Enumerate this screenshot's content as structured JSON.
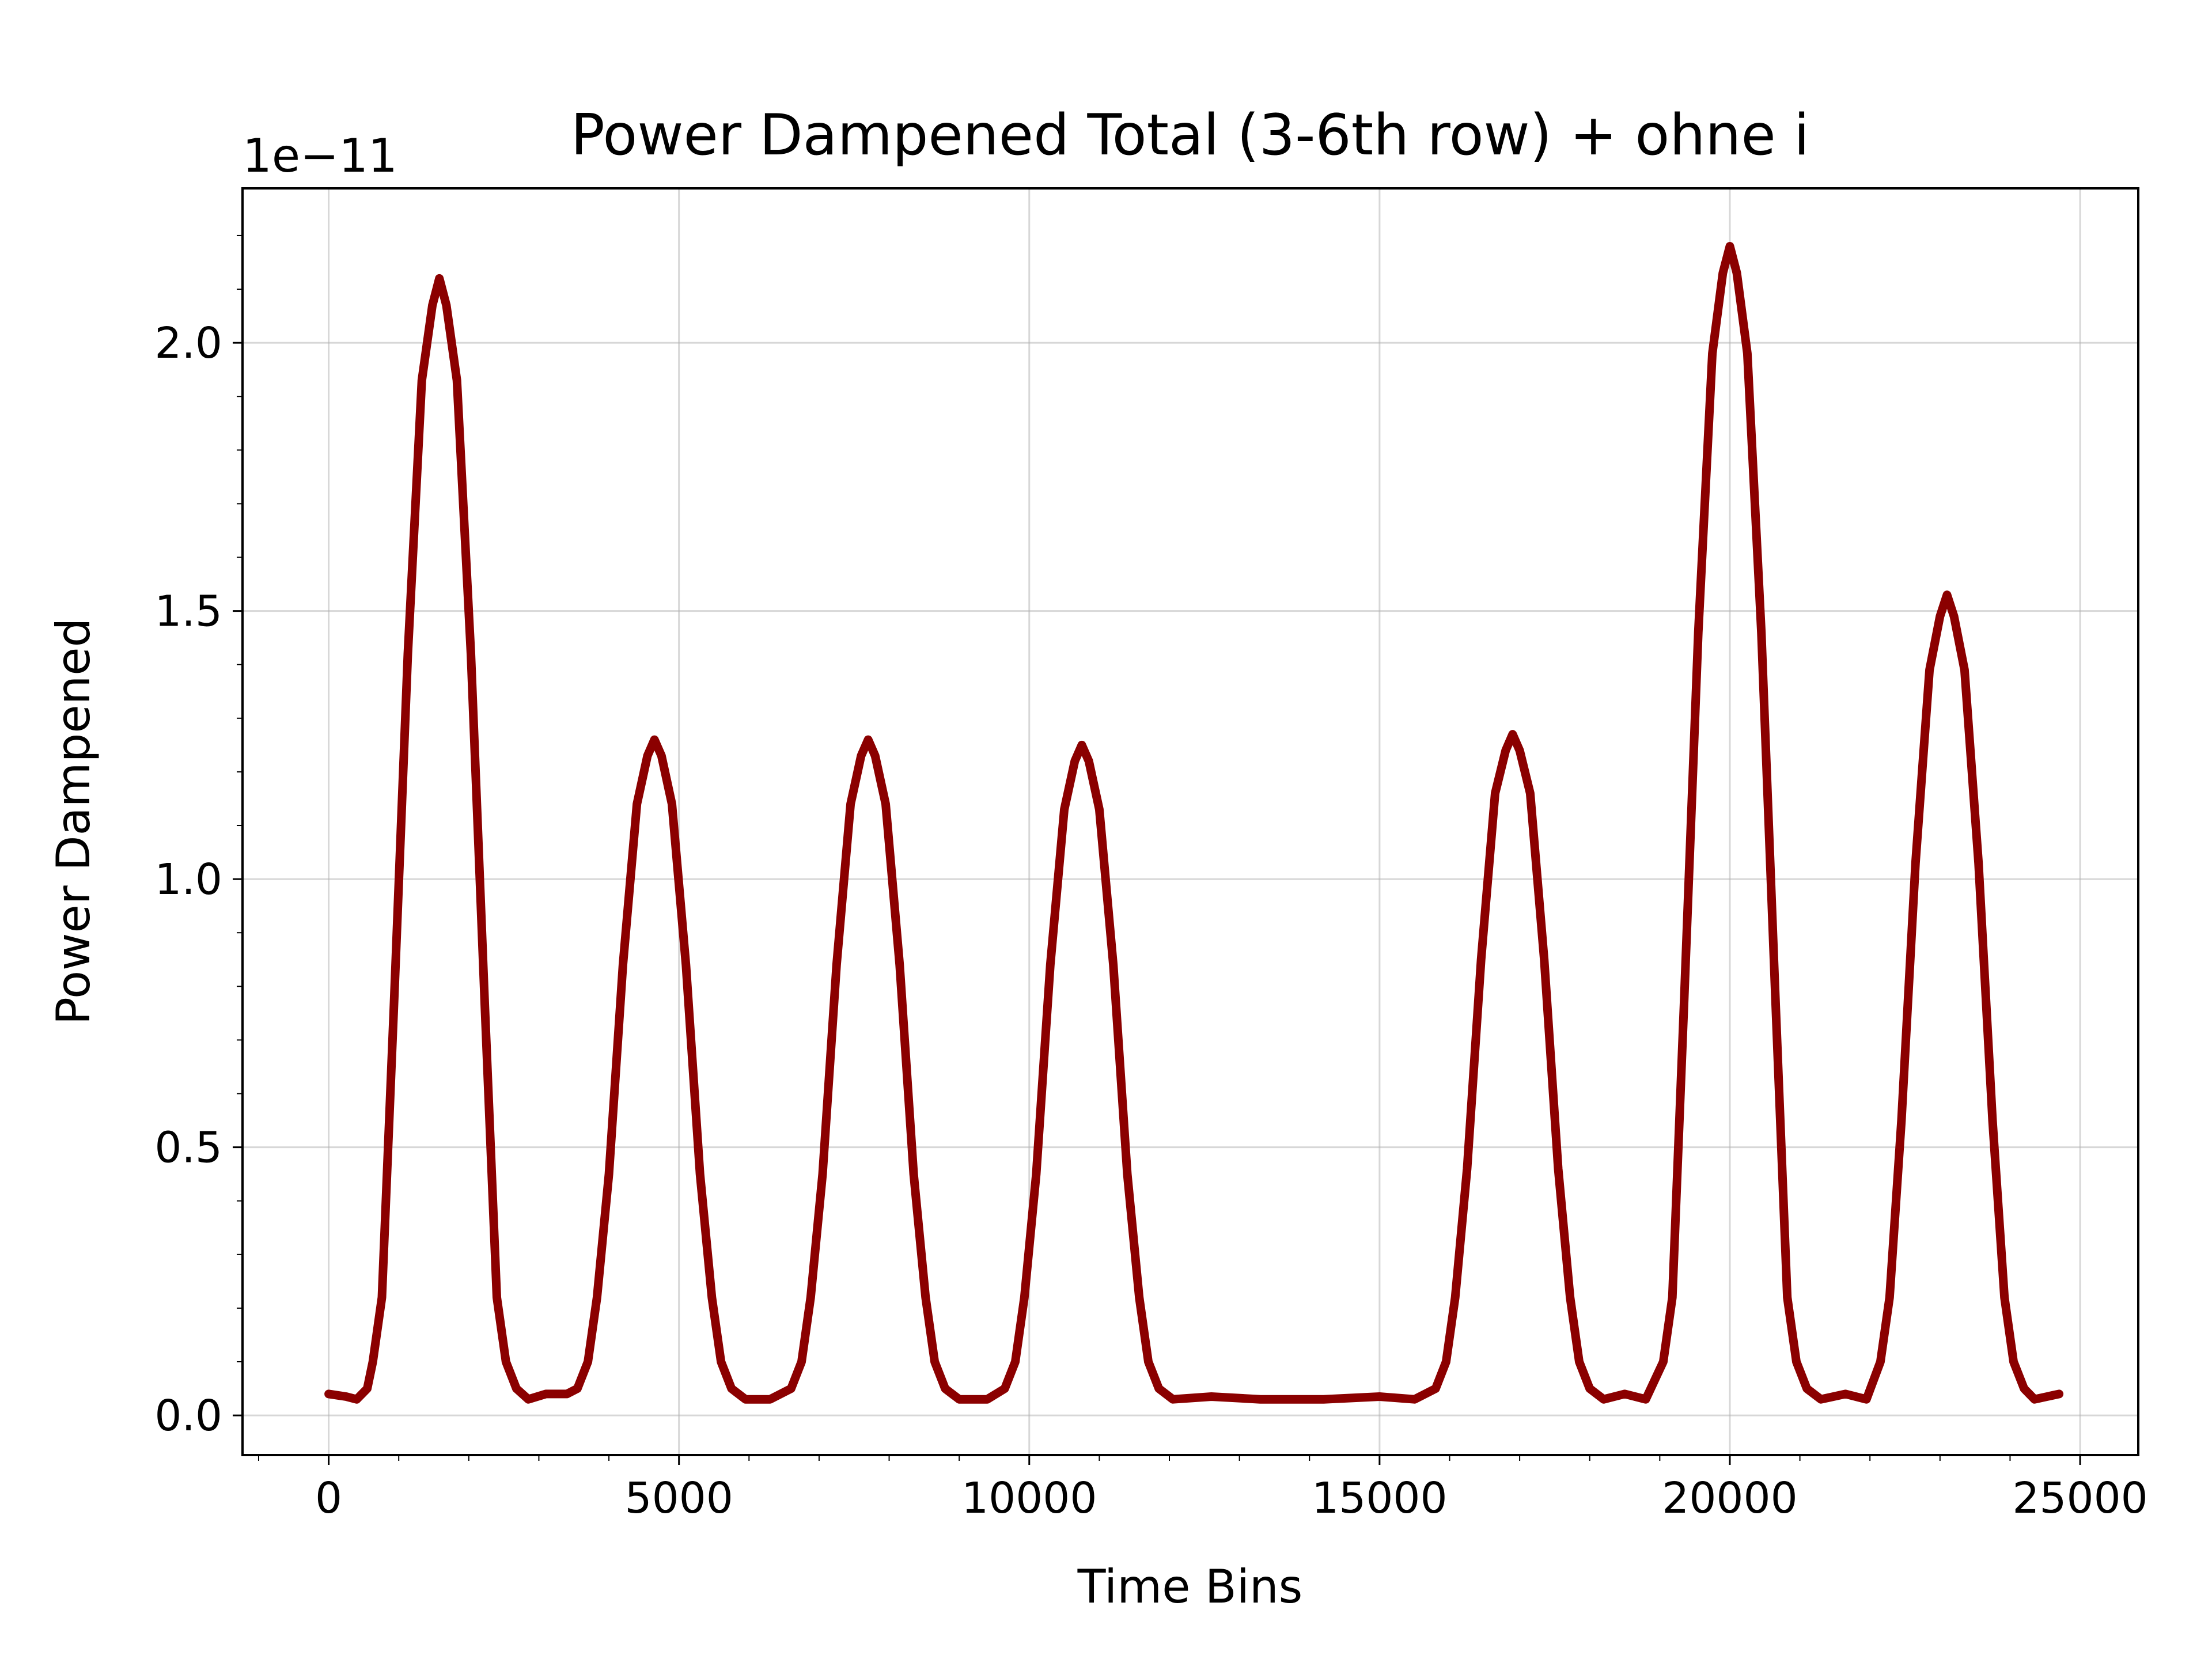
{
  "chart_data": {
    "type": "line",
    "title": "Power Dampened Total (3-6th row) + ohne i",
    "x_label": "Time Bins",
    "y_label": "Power Dampened",
    "y_offset_text": "1e−11",
    "xlim": [
      -1230,
      25830
    ],
    "ylim": [
      -0.074,
      2.288
    ],
    "xticks": [
      0,
      5000,
      10000,
      15000,
      20000,
      25000
    ],
    "yticks": [
      {
        "value": 0,
        "label": "0.0"
      },
      0.5,
      {
        "value": 1,
        "label": "1.0"
      },
      1.5,
      {
        "value": 2,
        "label": "2.0"
      }
    ],
    "xminorticks": [
      -1000,
      1000,
      2000,
      3000,
      4000,
      6000,
      7000,
      8000,
      9000,
      11000,
      12000,
      13000,
      14000,
      16000,
      17000,
      18000,
      19000,
      21000,
      22000,
      23000,
      24000
    ],
    "yminorticks": [
      0.1,
      0.2,
      0.3,
      0.4,
      0.6,
      0.7,
      0.8,
      0.9,
      1.1,
      1.2,
      1.3,
      1.4,
      1.6,
      1.7,
      1.8,
      1.9,
      2.1,
      2.2
    ],
    "grid": true,
    "series": [
      {
        "name": "Power Dampened",
        "color": "#8b0000",
        "x": [
          0,
          250,
          400,
          550,
          630,
          760,
          930,
          1130,
          1330,
          1480,
          1580,
          1680,
          1830,
          2030,
          2230,
          2400,
          2530,
          2680,
          2850,
          3100,
          3400,
          3550,
          3700,
          3830,
          4000,
          4200,
          4400,
          4550,
          4650,
          4750,
          4900,
          5100,
          5300,
          5470,
          5600,
          5750,
          5950,
          6300,
          6600,
          6750,
          6880,
          7050,
          7250,
          7450,
          7600,
          7700,
          7800,
          7950,
          8150,
          8350,
          8520,
          8650,
          8800,
          9000,
          9400,
          9650,
          9800,
          9930,
          10100,
          10300,
          10500,
          10650,
          10750,
          10850,
          11000,
          11200,
          11400,
          11570,
          11700,
          11850,
          12050,
          12600,
          13300,
          14200,
          15000,
          15500,
          15800,
          15950,
          16080,
          16250,
          16450,
          16650,
          16800,
          16900,
          17000,
          17150,
          17350,
          17550,
          17720,
          17850,
          18000,
          18200,
          18500,
          18800,
          19050,
          19180,
          19350,
          19550,
          19750,
          19900,
          20000,
          20100,
          20250,
          20450,
          20650,
          20820,
          20950,
          21100,
          21300,
          21650,
          21950,
          22150,
          22280,
          22450,
          22650,
          22850,
          23000,
          23100,
          23200,
          23350,
          23550,
          23750,
          23920,
          24050,
          24200,
          24350,
          24700
        ],
        "values": [
          0.04,
          0.035,
          0.03,
          0.05,
          0.1,
          0.22,
          0.76,
          1.42,
          1.93,
          2.07,
          2.12,
          2.07,
          1.93,
          1.42,
          0.76,
          0.22,
          0.1,
          0.05,
          0.03,
          0.04,
          0.04,
          0.05,
          0.1,
          0.22,
          0.45,
          0.84,
          1.14,
          1.23,
          1.26,
          1.23,
          1.14,
          0.84,
          0.45,
          0.22,
          0.1,
          0.05,
          0.03,
          0.03,
          0.05,
          0.1,
          0.22,
          0.45,
          0.84,
          1.14,
          1.23,
          1.26,
          1.23,
          1.14,
          0.84,
          0.45,
          0.22,
          0.1,
          0.05,
          0.03,
          0.03,
          0.05,
          0.1,
          0.22,
          0.45,
          0.84,
          1.13,
          1.22,
          1.25,
          1.22,
          1.13,
          0.84,
          0.45,
          0.22,
          0.1,
          0.05,
          0.03,
          0.035,
          0.03,
          0.03,
          0.035,
          0.03,
          0.05,
          0.1,
          0.22,
          0.46,
          0.85,
          1.16,
          1.24,
          1.27,
          1.24,
          1.16,
          0.85,
          0.46,
          0.22,
          0.1,
          0.05,
          0.03,
          0.04,
          0.03,
          0.1,
          0.22,
          0.78,
          1.46,
          1.98,
          2.13,
          2.18,
          2.13,
          1.98,
          1.46,
          0.78,
          0.22,
          0.1,
          0.05,
          0.03,
          0.04,
          0.03,
          0.1,
          0.22,
          0.55,
          1.03,
          1.39,
          1.49,
          1.53,
          1.49,
          1.39,
          1.03,
          0.55,
          0.22,
          0.1,
          0.05,
          0.03,
          0.04
        ]
      }
    ]
  }
}
